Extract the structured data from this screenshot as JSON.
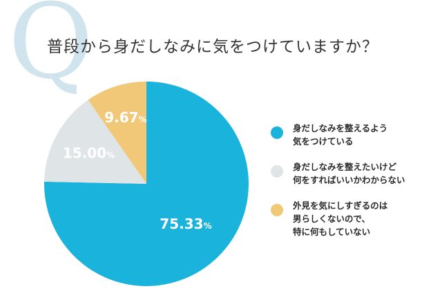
{
  "title": "普段から身だしなみに気をつけていますか？",
  "decor_letter": "Q",
  "chart_data": {
    "type": "pie",
    "start_angle_deg": 0,
    "direction": "clockwise",
    "series": [
      {
        "name": "身だしなみを整えるよう\n気をつけている",
        "value": 75.33,
        "label": "75.33",
        "unit": "%",
        "color": "#1ab3db",
        "label_color": "#ffffff"
      },
      {
        "name": "身だしなみを整えたいけど\n何をすればいいかわからない",
        "value": 15.0,
        "label": "15.00",
        "unit": "%",
        "color": "#dfe5e6",
        "label_color": "#ffffff"
      },
      {
        "name": "外見を気にしすぎるのは\n男らしくないので、\n特に何もしていない",
        "value": 9.67,
        "label": "9.67",
        "unit": "%",
        "color": "#f0c877",
        "label_color": "#ffffff"
      }
    ]
  }
}
